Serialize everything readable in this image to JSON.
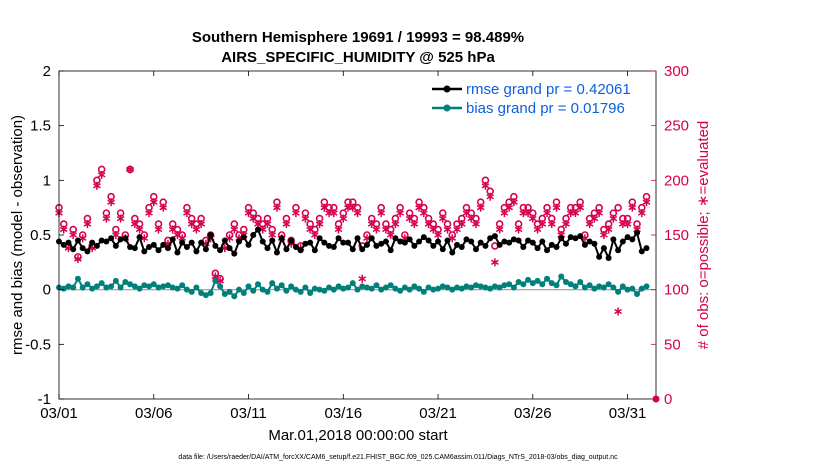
{
  "chart_data": {
    "type": "line",
    "title_line1": "Southern Hemisphere 19691 / 19993 = 98.489%",
    "title_line2": "AIRS_SPECIFIC_HUMIDITY @ 525 hPa",
    "xlabel": "Mar.01,2018 00:00:00 start",
    "ylabel": "rmse and bias (model - observation)",
    "ylabel_right": "# of obs: o=possible; ∗=evaluated",
    "footnote": "data file: /Users/raeder/DAI/ATM_forcXX/CAM6_setup/f.e21.FHIST_BGC.f09_025.CAM6assim.011/Diags_NTrS_2018-03/obs_diag_output.nc",
    "xlim": [
      0,
      31.5
    ],
    "ylim": [
      -1,
      2
    ],
    "ylim_right": [
      0,
      300
    ],
    "x_ticks": [
      0,
      5,
      10,
      15,
      20,
      25,
      30
    ],
    "x_tick_labels": [
      "03/01",
      "03/06",
      "03/11",
      "03/16",
      "03/21",
      "03/26",
      "03/31"
    ],
    "y_ticks": [
      -1,
      -0.5,
      0,
      0.5,
      1,
      1.5,
      2
    ],
    "y_tick_labels": [
      "-1",
      "-0.5",
      "0",
      "0.5",
      "1",
      "1.5",
      "2"
    ],
    "y_right_ticks": [
      0,
      50,
      100,
      150,
      200,
      250,
      300
    ],
    "y_right_tick_labels": [
      "0",
      "50",
      "100",
      "150",
      "200",
      "250",
      "300"
    ],
    "legend": [
      {
        "name": "rmse",
        "label": "rmse grand pr = 0.42061",
        "color": "#000000"
      },
      {
        "name": "bias",
        "label": "bias grand pr = 0.01796",
        "color": "#00807a"
      }
    ],
    "series": [
      {
        "name": "rmse",
        "color": "#000000",
        "x": [
          0.0,
          0.25,
          0.5,
          0.75,
          1.0,
          1.25,
          1.5,
          1.75,
          2.0,
          2.25,
          2.5,
          2.75,
          3.0,
          3.25,
          3.5,
          3.75,
          4.0,
          4.25,
          4.5,
          4.75,
          5.0,
          5.25,
          5.5,
          5.75,
          6.0,
          6.25,
          6.5,
          6.75,
          7.0,
          7.25,
          7.5,
          7.75,
          8.0,
          8.25,
          8.5,
          8.75,
          9.0,
          9.25,
          9.5,
          9.75,
          10.0,
          10.25,
          10.5,
          10.75,
          11.0,
          11.25,
          11.5,
          11.75,
          12.0,
          12.25,
          12.5,
          12.75,
          13.0,
          13.25,
          13.5,
          13.75,
          14.0,
          14.25,
          14.5,
          14.75,
          15.0,
          15.25,
          15.5,
          15.75,
          16.0,
          16.25,
          16.5,
          16.75,
          17.0,
          17.25,
          17.5,
          17.75,
          18.0,
          18.25,
          18.5,
          18.75,
          19.0,
          19.25,
          19.5,
          19.75,
          20.0,
          20.25,
          20.5,
          20.75,
          21.0,
          21.25,
          21.5,
          21.75,
          22.0,
          22.25,
          22.5,
          22.75,
          23.0,
          23.25,
          23.5,
          23.75,
          24.0,
          24.25,
          24.5,
          24.75,
          25.0,
          25.25,
          25.5,
          25.75,
          26.0,
          26.25,
          26.5,
          26.75,
          27.0,
          27.25,
          27.5,
          27.75,
          28.0,
          28.25,
          28.5,
          28.75,
          29.0,
          29.25,
          29.5,
          29.75,
          30.0,
          30.25,
          30.5,
          30.75,
          31.0
        ],
        "values": [
          0.44,
          0.41,
          0.43,
          0.37,
          0.45,
          0.38,
          0.35,
          0.43,
          0.4,
          0.45,
          0.44,
          0.47,
          0.4,
          0.46,
          0.47,
          0.39,
          0.38,
          0.48,
          0.35,
          0.39,
          0.41,
          0.36,
          0.41,
          0.38,
          0.46,
          0.34,
          0.43,
          0.39,
          0.43,
          0.35,
          0.43,
          0.37,
          0.5,
          0.4,
          0.36,
          0.45,
          0.38,
          0.33,
          0.44,
          0.48,
          0.41,
          0.5,
          0.55,
          0.44,
          0.38,
          0.45,
          0.34,
          0.47,
          0.37,
          0.45,
          0.39,
          0.36,
          0.42,
          0.43,
          0.36,
          0.47,
          0.43,
          0.4,
          0.39,
          0.47,
          0.43,
          0.43,
          0.37,
          0.47,
          0.37,
          0.41,
          0.47,
          0.4,
          0.42,
          0.44,
          0.36,
          0.47,
          0.44,
          0.43,
          0.46,
          0.4,
          0.44,
          0.48,
          0.45,
          0.4,
          0.44,
          0.37,
          0.45,
          0.34,
          0.41,
          0.39,
          0.46,
          0.44,
          0.37,
          0.43,
          0.4,
          0.47,
          0.49,
          0.41,
          0.44,
          0.43,
          0.46,
          0.45,
          0.39,
          0.45,
          0.43,
          0.38,
          0.44,
          0.36,
          0.41,
          0.39,
          0.47,
          0.42,
          0.48,
          0.47,
          0.49,
          0.41,
          0.44,
          0.42,
          0.3,
          0.38,
          0.29,
          0.46,
          0.36,
          0.44,
          0.48,
          0.46,
          0.52,
          0.35,
          0.38
        ]
      },
      {
        "name": "bias",
        "color": "#00807a",
        "x": [
          0.0,
          0.25,
          0.5,
          0.75,
          1.0,
          1.25,
          1.5,
          1.75,
          2.0,
          2.25,
          2.5,
          2.75,
          3.0,
          3.25,
          3.5,
          3.75,
          4.0,
          4.25,
          4.5,
          4.75,
          5.0,
          5.25,
          5.5,
          5.75,
          6.0,
          6.25,
          6.5,
          6.75,
          7.0,
          7.25,
          7.5,
          7.75,
          8.0,
          8.25,
          8.5,
          8.75,
          9.0,
          9.25,
          9.5,
          9.75,
          10.0,
          10.25,
          10.5,
          10.75,
          11.0,
          11.25,
          11.5,
          11.75,
          12.0,
          12.25,
          12.5,
          12.75,
          13.0,
          13.25,
          13.5,
          13.75,
          14.0,
          14.25,
          14.5,
          14.75,
          15.0,
          15.25,
          15.5,
          15.75,
          16.0,
          16.25,
          16.5,
          16.75,
          17.0,
          17.25,
          17.5,
          17.75,
          18.0,
          18.25,
          18.5,
          18.75,
          19.0,
          19.25,
          19.5,
          19.75,
          20.0,
          20.25,
          20.5,
          20.75,
          21.0,
          21.25,
          21.5,
          21.75,
          22.0,
          22.25,
          22.5,
          22.75,
          23.0,
          23.25,
          23.5,
          23.75,
          24.0,
          24.25,
          24.5,
          24.75,
          25.0,
          25.25,
          25.5,
          25.75,
          26.0,
          26.25,
          26.5,
          26.75,
          27.0,
          27.25,
          27.5,
          27.75,
          28.0,
          28.25,
          28.5,
          28.75,
          29.0,
          29.25,
          29.5,
          29.75,
          30.0,
          30.25,
          30.5,
          30.75,
          31.0
        ],
        "values": [
          0.02,
          0.01,
          0.03,
          0.02,
          0.1,
          0.02,
          0.05,
          0.01,
          0.03,
          0.06,
          0.02,
          0.03,
          0.08,
          0.02,
          0.07,
          0.05,
          0.03,
          0.01,
          0.04,
          0.03,
          0.05,
          0.02,
          0.03,
          0.04,
          0.02,
          0.01,
          0.04,
          0.0,
          -0.02,
          0.02,
          -0.03,
          -0.05,
          -0.03,
          0.08,
          0.03,
          -0.04,
          -0.02,
          -0.06,
          0.0,
          -0.03,
          0.03,
          -0.01,
          0.05,
          0.0,
          -0.02,
          0.06,
          0.01,
          0.04,
          -0.01,
          0.03,
          0.0,
          -0.02,
          0.02,
          -0.03,
          0.01,
          0.0,
          -0.01,
          0.02,
          0.0,
          0.03,
          0.01,
          0.02,
          0.06,
          0.0,
          0.03,
          0.02,
          0.01,
          0.04,
          0.0,
          0.02,
          0.04,
          0.01,
          -0.01,
          0.02,
          0.0,
          0.03,
          0.01,
          -0.02,
          0.02,
          0.0,
          0.01,
          0.03,
          0.02,
          0.0,
          0.02,
          0.01,
          0.03,
          0.02,
          0.04,
          0.03,
          0.02,
          0.01,
          0.03,
          0.02,
          0.04,
          0.05,
          0.02,
          0.07,
          0.05,
          0.09,
          0.06,
          0.08,
          0.05,
          0.1,
          0.06,
          0.04,
          0.12,
          0.07,
          0.05,
          0.03,
          0.07,
          0.02,
          0.04,
          0.01,
          0.03,
          0.02,
          0.05,
          0.02,
          -0.02,
          0.03,
          0.0,
          0.01,
          -0.04,
          0.01,
          0.03
        ]
      },
      {
        "name": "obs_possible",
        "color": "#d6004f",
        "axis": "right",
        "x": [
          0.0,
          0.25,
          0.5,
          0.75,
          1.0,
          1.25,
          1.5,
          1.75,
          2.0,
          2.25,
          2.5,
          2.75,
          3.0,
          3.25,
          3.5,
          3.75,
          4.0,
          4.25,
          4.5,
          4.75,
          5.0,
          5.25,
          5.5,
          5.75,
          6.0,
          6.25,
          6.5,
          6.75,
          7.0,
          7.25,
          7.5,
          7.75,
          8.0,
          8.25,
          8.5,
          8.75,
          9.0,
          9.25,
          9.5,
          9.75,
          10.0,
          10.25,
          10.5,
          10.75,
          11.0,
          11.25,
          11.5,
          11.75,
          12.0,
          12.25,
          12.5,
          12.75,
          13.0,
          13.25,
          13.5,
          13.75,
          14.0,
          14.25,
          14.5,
          14.75,
          15.0,
          15.25,
          15.5,
          15.75,
          16.0,
          16.25,
          16.5,
          16.75,
          17.0,
          17.25,
          17.5,
          17.75,
          18.0,
          18.25,
          18.5,
          18.75,
          19.0,
          19.25,
          19.5,
          19.75,
          20.0,
          20.25,
          20.5,
          20.75,
          21.0,
          21.25,
          21.5,
          21.75,
          22.0,
          22.25,
          22.5,
          22.75,
          23.0,
          23.25,
          23.5,
          23.75,
          24.0,
          24.25,
          24.5,
          24.75,
          25.0,
          25.25,
          25.5,
          25.75,
          26.0,
          26.25,
          26.5,
          26.75,
          27.0,
          27.25,
          27.5,
          27.75,
          28.0,
          28.25,
          28.5,
          28.75,
          29.0,
          29.25,
          29.5,
          29.75,
          30.0,
          30.25,
          30.5,
          30.75,
          31.0
        ],
        "values": [
          175,
          160,
          140,
          155,
          130,
          150,
          165,
          140,
          200,
          210,
          170,
          185,
          155,
          170,
          150,
          210,
          165,
          160,
          150,
          175,
          185,
          160,
          180,
          145,
          160,
          155,
          150,
          175,
          165,
          160,
          165,
          145,
          150,
          115,
          110,
          140,
          150,
          160,
          150,
          155,
          175,
          170,
          165,
          160,
          165,
          155,
          180,
          150,
          165,
          145,
          175,
          140,
          170,
          160,
          155,
          165,
          180,
          175,
          175,
          160,
          170,
          180,
          180,
          175,
          140,
          150,
          165,
          160,
          175,
          160,
          155,
          165,
          175,
          150,
          170,
          165,
          180,
          175,
          165,
          160,
          155,
          170,
          160,
          150,
          160,
          165,
          175,
          170,
          165,
          180,
          200,
          190,
          140,
          160,
          175,
          180,
          185,
          160,
          175,
          175,
          170,
          160,
          165,
          175,
          165,
          180,
          155,
          165,
          175,
          175,
          180,
          150,
          165,
          170,
          175,
          155,
          160,
          170,
          175,
          165,
          165,
          180,
          160,
          175,
          185
        ]
      },
      {
        "name": "obs_evaluated",
        "color": "#d6004f",
        "axis": "right",
        "x": [
          0.0,
          0.25,
          0.5,
          0.75,
          1.0,
          1.25,
          1.5,
          1.75,
          2.0,
          2.25,
          2.5,
          2.75,
          3.0,
          3.25,
          3.5,
          3.75,
          4.0,
          4.25,
          4.5,
          4.75,
          5.0,
          5.25,
          5.5,
          5.75,
          6.0,
          6.25,
          6.5,
          6.75,
          7.0,
          7.25,
          7.5,
          7.75,
          8.0,
          8.25,
          8.5,
          8.75,
          9.0,
          9.25,
          9.5,
          9.75,
          10.0,
          10.25,
          10.5,
          10.75,
          11.0,
          11.25,
          11.5,
          11.75,
          12.0,
          12.25,
          12.5,
          12.75,
          13.0,
          13.25,
          13.5,
          13.75,
          14.0,
          14.25,
          14.5,
          14.75,
          15.0,
          15.25,
          15.5,
          15.75,
          16.0,
          16.25,
          16.5,
          16.75,
          17.0,
          17.25,
          17.5,
          17.75,
          18.0,
          18.25,
          18.5,
          18.75,
          19.0,
          19.25,
          19.5,
          19.75,
          20.0,
          20.25,
          20.5,
          20.75,
          21.0,
          21.25,
          21.5,
          21.75,
          22.0,
          22.25,
          22.5,
          22.75,
          23.0,
          23.25,
          23.5,
          23.75,
          24.0,
          24.25,
          24.5,
          24.75,
          25.0,
          25.25,
          25.5,
          25.75,
          26.0,
          26.25,
          26.5,
          26.75,
          27.0,
          27.25,
          27.5,
          27.75,
          28.0,
          28.25,
          28.5,
          28.75,
          29.0,
          29.25,
          29.5,
          29.75,
          30.0,
          30.25,
          30.5,
          30.75,
          31.0
        ],
        "values": [
          170,
          155,
          138,
          150,
          128,
          147,
          160,
          138,
          195,
          205,
          165,
          180,
          150,
          165,
          147,
          210,
          160,
          155,
          147,
          170,
          180,
          155,
          175,
          142,
          155,
          150,
          147,
          170,
          160,
          155,
          160,
          142,
          147,
          112,
          108,
          138,
          147,
          155,
          147,
          150,
          170,
          165,
          160,
          155,
          160,
          150,
          175,
          147,
          160,
          142,
          170,
          138,
          165,
          155,
          150,
          160,
          175,
          170,
          170,
          155,
          165,
          175,
          175,
          170,
          110,
          147,
          160,
          155,
          170,
          155,
          150,
          160,
          170,
          147,
          165,
          160,
          175,
          170,
          160,
          155,
          150,
          165,
          155,
          147,
          155,
          160,
          170,
          165,
          160,
          175,
          195,
          185,
          125,
          155,
          170,
          175,
          180,
          155,
          170,
          170,
          165,
          155,
          160,
          170,
          160,
          175,
          150,
          160,
          170,
          170,
          175,
          147,
          160,
          165,
          170,
          150,
          155,
          165,
          80,
          160,
          160,
          175,
          155,
          170,
          180
        ]
      }
    ]
  }
}
